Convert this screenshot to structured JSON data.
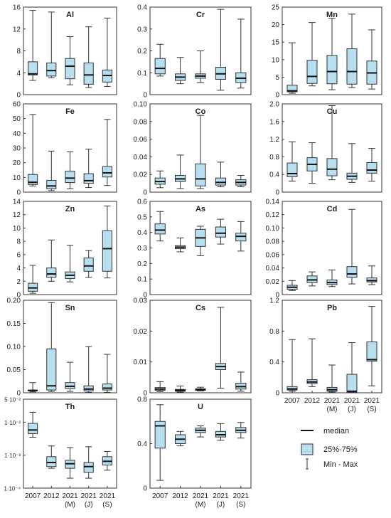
{
  "style": {
    "box_fill": "#b8dff0",
    "stroke": "#333333"
  },
  "categories": [
    "2007",
    "2012",
    "2021 (M)",
    "2021 (J)",
    "2021 (S)"
  ],
  "xtick_lines": [
    [
      "2007"
    ],
    [
      "2012"
    ],
    [
      "2021",
      "(M)"
    ],
    [
      "2021",
      "(J)"
    ],
    [
      "2021",
      "(S)"
    ]
  ],
  "legend": {
    "median": "median",
    "box": "25%-75%",
    "whisker": "Min - Max"
  },
  "chart_data": [
    {
      "type": "box",
      "title": "Al",
      "ylim": [
        0,
        16
      ],
      "yticks": [
        0,
        4,
        8,
        12,
        16
      ],
      "ytick_labels": [
        "0",
        "4",
        "8",
        "12",
        "16"
      ],
      "boxes": [
        {
          "category": "2007",
          "min": 2.6,
          "q1": 3.6,
          "median": 3.8,
          "q3": 6.0,
          "max": 15.4
        },
        {
          "category": "2012",
          "min": 3.1,
          "q1": 3.4,
          "median": 4.4,
          "q3": 5.8,
          "max": 15.1
        },
        {
          "category": "2021 (M)",
          "min": 1.8,
          "q1": 2.9,
          "median": 5.2,
          "q3": 6.6,
          "max": 10.6
        },
        {
          "category": "2021 (J)",
          "min": 1.3,
          "q1": 1.9,
          "median": 3.6,
          "q3": 5.8,
          "max": 12.4
        },
        {
          "category": "2021 (S)",
          "min": 1.5,
          "q1": 2.3,
          "median": 3.5,
          "q3": 4.5,
          "max": 14.0
        }
      ]
    },
    {
      "type": "box",
      "title": "Cr",
      "ylim": [
        0,
        0.4
      ],
      "yticks": [
        0,
        0.1,
        0.2,
        0.3,
        0.4
      ],
      "ytick_labels": [
        "0",
        "0.1",
        "0.2",
        "0.3",
        "0.4"
      ],
      "boxes": [
        {
          "category": "2007",
          "min": 0.085,
          "q1": 0.095,
          "median": 0.12,
          "q3": 0.165,
          "max": 0.23
        },
        {
          "category": "2012",
          "min": 0.05,
          "q1": 0.065,
          "median": 0.08,
          "q3": 0.095,
          "max": 0.17
        },
        {
          "category": "2021 (M)",
          "min": 0.055,
          "q1": 0.075,
          "median": 0.085,
          "q3": 0.095,
          "max": 0.2
        },
        {
          "category": "2021 (J)",
          "min": 0.02,
          "q1": 0.07,
          "median": 0.095,
          "q3": 0.125,
          "max": 0.39
        },
        {
          "category": "2021 (S)",
          "min": 0.03,
          "q1": 0.055,
          "median": 0.075,
          "q3": 0.1,
          "max": 0.345
        }
      ]
    },
    {
      "type": "box",
      "title": "Mn",
      "ylim": [
        0,
        25
      ],
      "yticks": [
        0,
        5,
        10,
        15,
        20,
        25
      ],
      "ytick_labels": [
        "0",
        "5",
        "10",
        "15",
        "20",
        "25"
      ],
      "boxes": [
        {
          "category": "2007",
          "min": 0.4,
          "q1": 0.8,
          "median": 1.1,
          "q3": 2.7,
          "max": 14.8
        },
        {
          "category": "2012",
          "min": 2.5,
          "q1": 3.2,
          "median": 5.2,
          "q3": 9.8,
          "max": 20.6
        },
        {
          "category": "2021 (M)",
          "min": 1.4,
          "q1": 3.1,
          "median": 6.6,
          "q3": 11.2,
          "max": 21.8
        },
        {
          "category": "2021 (J)",
          "min": 2.0,
          "q1": 3.0,
          "median": 6.6,
          "q3": 13.1,
          "max": 23.0
        },
        {
          "category": "2021 (S)",
          "min": 1.6,
          "q1": 3.0,
          "median": 6.2,
          "q3": 9.6,
          "max": 18.5
        }
      ]
    },
    {
      "type": "box",
      "title": "Fe",
      "ylim": [
        0,
        60
      ],
      "yticks": [
        0,
        10,
        20,
        30,
        40,
        50,
        60
      ],
      "ytick_labels": [
        "0",
        "10",
        "20",
        "30",
        "40",
        "50",
        "60"
      ],
      "boxes": [
        {
          "category": "2007",
          "min": 4.2,
          "q1": 5.2,
          "median": 6.7,
          "q3": 12.0,
          "max": 52.8
        },
        {
          "category": "2012",
          "min": 1.0,
          "q1": 2.3,
          "median": 4.2,
          "q3": 8.0,
          "max": 27.9
        },
        {
          "category": "2021 (M)",
          "min": 2.3,
          "q1": 6.5,
          "median": 9.5,
          "q3": 14.3,
          "max": 27.5
        },
        {
          "category": "2021 (J)",
          "min": 3.1,
          "q1": 6.0,
          "median": 7.8,
          "q3": 12.5,
          "max": 29.2
        },
        {
          "category": "2021 (S)",
          "min": 4.5,
          "q1": 10.3,
          "median": 13.1,
          "q3": 17.4,
          "max": 49.5
        }
      ]
    },
    {
      "type": "box",
      "title": "Co",
      "ylim": [
        0,
        0.1
      ],
      "yticks": [
        0,
        0.02,
        0.04,
        0.06,
        0.08,
        0.1
      ],
      "ytick_labels": [
        "0",
        "0.02",
        "0.04",
        "0.06",
        "0.08",
        "0.10"
      ],
      "boxes": [
        {
          "category": "2007",
          "min": 0.005,
          "q1": 0.009,
          "median": 0.012,
          "q3": 0.016,
          "max": 0.024
        },
        {
          "category": "2012",
          "min": 0.004,
          "q1": 0.012,
          "median": 0.015,
          "q3": 0.019,
          "max": 0.042
        },
        {
          "category": "2021 (M)",
          "min": 0.004,
          "q1": 0.007,
          "median": 0.015,
          "q3": 0.032,
          "max": 0.087
        },
        {
          "category": "2021 (J)",
          "min": 0.006,
          "q1": 0.008,
          "median": 0.011,
          "q3": 0.016,
          "max": 0.034
        },
        {
          "category": "2021 (S)",
          "min": 0.006,
          "q1": 0.008,
          "median": 0.011,
          "q3": 0.014,
          "max": 0.019
        }
      ]
    },
    {
      "type": "box",
      "title": "Cu",
      "ylim": [
        0,
        2.0
      ],
      "yticks": [
        0,
        0.4,
        0.8,
        1.2,
        1.6,
        2.0
      ],
      "ytick_labels": [
        "0",
        "0.4",
        "0.8",
        "1.2",
        "1.6",
        "2.0"
      ],
      "boxes": [
        {
          "category": "2007",
          "min": 0.25,
          "q1": 0.35,
          "median": 0.42,
          "q3": 0.66,
          "max": 1.14
        },
        {
          "category": "2012",
          "min": 0.2,
          "q1": 0.48,
          "median": 0.63,
          "q3": 0.78,
          "max": 1.12
        },
        {
          "category": "2021 (M)",
          "min": 0.28,
          "q1": 0.37,
          "median": 0.52,
          "q3": 0.76,
          "max": 1.96
        },
        {
          "category": "2021 (J)",
          "min": 0.22,
          "q1": 0.29,
          "median": 0.36,
          "q3": 0.43,
          "max": 1.1
        },
        {
          "category": "2021 (S)",
          "min": 0.25,
          "q1": 0.43,
          "median": 0.5,
          "q3": 0.67,
          "max": 0.99
        }
      ]
    },
    {
      "type": "box",
      "title": "Zn",
      "ylim": [
        0,
        14
      ],
      "yticks": [
        0,
        2,
        4,
        6,
        8,
        10,
        12,
        14
      ],
      "ytick_labels": [
        "0",
        "2",
        "4",
        "6",
        "8",
        "10",
        "12",
        "14"
      ],
      "boxes": [
        {
          "category": "2007",
          "min": 0.2,
          "q1": 0.5,
          "median": 1.0,
          "q3": 1.7,
          "max": 4.4
        },
        {
          "category": "2012",
          "min": 2.0,
          "q1": 2.6,
          "median": 3.1,
          "q3": 4.0,
          "max": 8.2
        },
        {
          "category": "2021 (M)",
          "min": 1.9,
          "q1": 2.4,
          "median": 2.9,
          "q3": 3.4,
          "max": 7.4
        },
        {
          "category": "2021 (J)",
          "min": 2.6,
          "q1": 3.5,
          "median": 4.3,
          "q3": 5.5,
          "max": 6.6
        },
        {
          "category": "2021 (S)",
          "min": 2.5,
          "q1": 3.5,
          "median": 6.9,
          "q3": 9.6,
          "max": 13.3
        }
      ]
    },
    {
      "type": "box",
      "title": "As",
      "ylim": [
        0,
        0.6
      ],
      "yticks": [
        0,
        0.1,
        0.2,
        0.3,
        0.4,
        0.5,
        0.6
      ],
      "ytick_labels": [
        "0",
        "0.1",
        "0.2",
        "0.3",
        "0.4",
        "0.5",
        "0.6"
      ],
      "boxes": [
        {
          "category": "2007",
          "min": 0.345,
          "q1": 0.39,
          "median": 0.415,
          "q3": 0.455,
          "max": 0.535
        },
        {
          "category": "2012",
          "min": 0.275,
          "q1": 0.295,
          "median": 0.305,
          "q3": 0.315,
          "max": 0.365
        },
        {
          "category": "2021 (M)",
          "min": 0.25,
          "q1": 0.31,
          "median": 0.365,
          "q3": 0.42,
          "max": 0.44
        },
        {
          "category": "2021 (J)",
          "min": 0.325,
          "q1": 0.37,
          "median": 0.395,
          "q3": 0.435,
          "max": 0.485
        },
        {
          "category": "2021 (S)",
          "min": 0.28,
          "q1": 0.345,
          "median": 0.375,
          "q3": 0.395,
          "max": 0.47
        }
      ]
    },
    {
      "type": "box",
      "title": "Cd",
      "ylim": [
        0,
        0.14
      ],
      "yticks": [
        0,
        0.02,
        0.04,
        0.06,
        0.08,
        0.1,
        0.12,
        0.14
      ],
      "ytick_labels": [
        "0",
        "0.02",
        "0.04",
        "0.06",
        "0.08",
        "0.10",
        "0.12",
        "0.14"
      ],
      "boxes": [
        {
          "category": "2007",
          "min": 0.006,
          "q1": 0.008,
          "median": 0.011,
          "q3": 0.014,
          "max": 0.021
        },
        {
          "category": "2012",
          "min": 0.013,
          "q1": 0.018,
          "median": 0.022,
          "q3": 0.028,
          "max": 0.034
        },
        {
          "category": "2021 (M)",
          "min": 0.012,
          "q1": 0.015,
          "median": 0.018,
          "q3": 0.022,
          "max": 0.037
        },
        {
          "category": "2021 (J)",
          "min": 0.016,
          "q1": 0.026,
          "median": 0.031,
          "q3": 0.042,
          "max": 0.128
        },
        {
          "category": "2021 (S)",
          "min": 0.015,
          "q1": 0.019,
          "median": 0.021,
          "q3": 0.025,
          "max": 0.043
        }
      ]
    },
    {
      "type": "box",
      "title": "Sn",
      "ylim": [
        0,
        0.2
      ],
      "yticks": [
        0,
        0.05,
        0.1,
        0.15,
        0.2
      ],
      "ytick_labels": [
        "0",
        "0.05",
        "0.10",
        "0.15",
        "0.20"
      ],
      "boxes": [
        {
          "category": "2007",
          "min": 0.002,
          "q1": 0.004,
          "median": 0.005,
          "q3": 0.006,
          "max": 0.022
        },
        {
          "category": "2012",
          "min": 0.003,
          "q1": 0.006,
          "median": 0.015,
          "q3": 0.095,
          "max": 0.195
        },
        {
          "category": "2021 (M)",
          "min": 0.003,
          "q1": 0.009,
          "median": 0.014,
          "q3": 0.022,
          "max": 0.066
        },
        {
          "category": "2021 (J)",
          "min": 0.001,
          "q1": 0.004,
          "median": 0.008,
          "q3": 0.015,
          "max": 0.1
        },
        {
          "category": "2021 (S)",
          "min": 0.001,
          "q1": 0.006,
          "median": 0.01,
          "q3": 0.019,
          "max": 0.083
        }
      ]
    },
    {
      "type": "box",
      "title": "Cs",
      "ylim": [
        0,
        0.03
      ],
      "yticks": [
        0,
        0.01,
        0.02,
        0.03
      ],
      "ytick_labels": [
        "0",
        "0.01",
        "0.02",
        "0.03"
      ],
      "boxes": [
        {
          "category": "2007",
          "min": 0.0004,
          "q1": 0.0008,
          "median": 0.0012,
          "q3": 0.0017,
          "max": 0.0036
        },
        {
          "category": "2012",
          "min": 0.0002,
          "q1": 0.0005,
          "median": 0.0008,
          "q3": 0.0011,
          "max": 0.0022
        },
        {
          "category": "2021 (M)",
          "min": 0.0006,
          "q1": 0.0008,
          "median": 0.001,
          "q3": 0.0013,
          "max": 0.0018
        },
        {
          "category": "2021 (J)",
          "min": 0.0015,
          "q1": 0.0075,
          "median": 0.0085,
          "q3": 0.0095,
          "max": 0.0277
        },
        {
          "category": "2021 (S)",
          "min": 0.0005,
          "q1": 0.0012,
          "median": 0.002,
          "q3": 0.0031,
          "max": 0.0067
        }
      ]
    },
    {
      "type": "box",
      "title": "Pb",
      "ylim": [
        0,
        1.2
      ],
      "yticks": [
        0,
        0.4,
        0.8,
        1.2
      ],
      "ytick_labels": [
        "0",
        "0.4",
        "0.8",
        "1.2"
      ],
      "boxes": [
        {
          "category": "2007",
          "min": 0.02,
          "q1": 0.035,
          "median": 0.05,
          "q3": 0.08,
          "max": 0.69
        },
        {
          "category": "2012",
          "min": 0.08,
          "q1": 0.12,
          "median": 0.14,
          "q3": 0.17,
          "max": 0.7
        },
        {
          "category": "2021 (M)",
          "min": 0.01,
          "q1": 0.02,
          "median": 0.04,
          "q3": 0.07,
          "max": 0.36
        },
        {
          "category": "2021 (J)",
          "min": 0.005,
          "q1": 0.01,
          "median": 0.02,
          "q3": 0.24,
          "max": 0.65
        },
        {
          "category": "2021 (S)",
          "min": 0.09,
          "q1": 0.41,
          "median": 0.43,
          "q3": 0.66,
          "max": 1.12
        }
      ]
    },
    {
      "type": "box",
      "title": "Th",
      "yscale": "log",
      "ylim": [
        0.0001,
        0.05
      ],
      "yticks": [
        0.0001,
        0.001,
        0.01,
        0.05
      ],
      "ytick_labels": [
        "1·10⁻⁴",
        "1·10⁻³",
        "1·10⁻²",
        "5·10⁻²"
      ],
      "boxes": [
        {
          "category": "2007",
          "min": 0.0035,
          "q1": 0.0045,
          "median": 0.0058,
          "q3": 0.0092,
          "max": 0.02
        },
        {
          "category": "2012",
          "min": 0.0004,
          "q1": 0.00045,
          "median": 0.0006,
          "q3": 0.0009,
          "max": 0.0019
        },
        {
          "category": "2021 (M)",
          "min": 0.0002,
          "q1": 0.0004,
          "median": 0.00055,
          "q3": 0.0007,
          "max": 0.0017
        },
        {
          "category": "2021 (J)",
          "min": 0.0002,
          "q1": 0.0003,
          "median": 0.00045,
          "q3": 0.0006,
          "max": 0.0018
        },
        {
          "category": "2021 (S)",
          "min": 0.00035,
          "q1": 0.0005,
          "median": 0.00065,
          "q3": 0.0009,
          "max": 0.0013
        }
      ]
    },
    {
      "type": "box",
      "title": "U",
      "ylim": [
        0,
        0.8
      ],
      "yticks": [
        0,
        0.4,
        0.8
      ],
      "ytick_labels": [
        "0",
        "0.4",
        "0.8"
      ],
      "boxes": [
        {
          "category": "2007",
          "min": 0.07,
          "q1": 0.36,
          "median": 0.56,
          "q3": 0.6,
          "max": 0.75
        },
        {
          "category": "2012",
          "min": 0.38,
          "q1": 0.4,
          "median": 0.44,
          "q3": 0.48,
          "max": 0.51
        },
        {
          "category": "2021 (M)",
          "min": 0.46,
          "q1": 0.5,
          "median": 0.52,
          "q3": 0.54,
          "max": 0.56
        },
        {
          "category": "2021 (J)",
          "min": 0.43,
          "q1": 0.46,
          "median": 0.48,
          "q3": 0.51,
          "max": 0.58
        },
        {
          "category": "2021 (S)",
          "min": 0.45,
          "q1": 0.5,
          "median": 0.52,
          "q3": 0.545,
          "max": 0.59
        }
      ]
    }
  ]
}
